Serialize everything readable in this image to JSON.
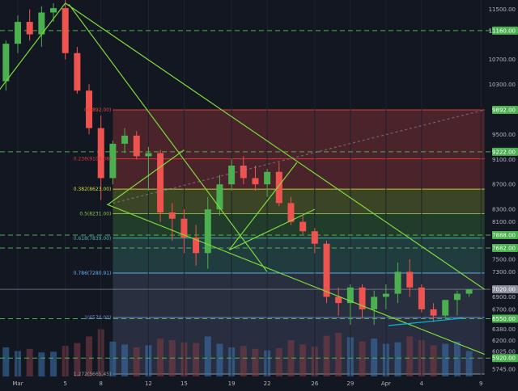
{
  "chart_data": {
    "type": "candlestick",
    "title": "",
    "xlabel": "",
    "ylabel": "",
    "ylim": [
      5600,
      11650
    ],
    "x_ticks": [
      {
        "label": "Mar",
        "day": 1
      },
      {
        "label": "5",
        "day": 5
      },
      {
        "label": "8",
        "day": 8
      },
      {
        "label": "12",
        "day": 12
      },
      {
        "label": "15",
        "day": 15
      },
      {
        "label": "19",
        "day": 19
      },
      {
        "label": "22",
        "day": 22
      },
      {
        "label": "26",
        "day": 26
      },
      {
        "label": "29",
        "day": 29
      },
      {
        "label": "Apr",
        "day": 32
      },
      {
        "label": "4",
        "day": 35
      },
      {
        "label": "9",
        "day": 40
      }
    ],
    "y_ticks": [
      "11500.00",
      "10700.00",
      "10300.00",
      "9900.00",
      "9500.00",
      "9100.00",
      "8700.00",
      "8300.00",
      "8100.00",
      "7500.00",
      "7300.00",
      "6900.00",
      "6700.00",
      "6380.00",
      "6200.00",
      "6025.00",
      "5745.00"
    ],
    "price_labels": [
      {
        "text": "11160.00",
        "value": 11160,
        "color": "#4caf50"
      },
      {
        "text": "9892.00",
        "value": 9892,
        "color": "#4caf50"
      },
      {
        "text": "9222.00",
        "value": 9222,
        "color": "#4caf50"
      },
      {
        "text": "7888.00",
        "value": 7888,
        "color": "#4caf50"
      },
      {
        "text": "7682.00",
        "value": 7682,
        "color": "#4caf50"
      },
      {
        "text": "7020.00",
        "value": 7020,
        "color": "#8a8f9a"
      },
      {
        "text": "6550.00",
        "value": 6550,
        "color": "#4caf50"
      },
      {
        "text": "5920.00",
        "value": 5920,
        "color": "#4caf50"
      }
    ],
    "horizontal_levels": [
      11160,
      9222,
      7888,
      7682,
      6550,
      5920
    ],
    "fib_levels": [
      {
        "label": "0(9892.00)",
        "value": 9892,
        "color": "#f44336"
      },
      {
        "label": "0.236(9108.08)",
        "value": 9108,
        "color": "#e53935"
      },
      {
        "label": "0.382(8623.00)",
        "value": 8623,
        "color": "#cddc39"
      },
      {
        "label": "0.5(8231.00)",
        "value": 8231,
        "color": "#8bc34a"
      },
      {
        "label": "0.618(7839.00)",
        "value": 7839,
        "color": "#4db6ac"
      },
      {
        "label": "0.786(7280.91)",
        "value": 7281,
        "color": "#64b5f6"
      },
      {
        "label": "1(6570.00)",
        "value": 6570,
        "color": "#7e8cd6"
      },
      {
        "label": "1.272(5665.45)",
        "value": 5665,
        "color": "#9e9e9e"
      }
    ],
    "fib_range_days": [
      9,
      40.3
    ],
    "series": [
      {
        "days": [
          0,
          1,
          2,
          3,
          4,
          5,
          6,
          7,
          8,
          9,
          10,
          11,
          12,
          13,
          14,
          15,
          16,
          17,
          18,
          19,
          20,
          21,
          22,
          23,
          24,
          25,
          26,
          27,
          28,
          29,
          30,
          31,
          32,
          33,
          34,
          35,
          36,
          37,
          38,
          39
        ],
        "open": [
          10350,
          10950,
          11300,
          11100,
          11450,
          11520,
          10800,
          10200,
          9600,
          8800,
          9350,
          9480,
          9150,
          9200,
          8250,
          8150,
          7850,
          7600,
          8300,
          8700,
          9000,
          8800,
          8700,
          8900,
          8400,
          8100,
          7950,
          7750,
          6900,
          6800,
          7050,
          6700,
          6900,
          6950,
          7300,
          7050,
          6700,
          6600,
          6850,
          6950
        ],
        "high": [
          11000,
          11400,
          11500,
          11550,
          11600,
          11650,
          10900,
          10300,
          9800,
          9400,
          9600,
          9550,
          9300,
          9250,
          8400,
          8300,
          8050,
          8500,
          8850,
          9100,
          9150,
          9000,
          8950,
          9050,
          8500,
          8200,
          8000,
          7800,
          7050,
          7100,
          7100,
          7000,
          7100,
          7450,
          7500,
          7100,
          6800,
          6850,
          7000,
          7020
        ],
        "low": [
          10200,
          10800,
          11000,
          10900,
          11300,
          10700,
          10150,
          9500,
          8450,
          8700,
          9200,
          9100,
          8600,
          8100,
          7800,
          7600,
          7400,
          7350,
          8200,
          8600,
          8700,
          8600,
          8500,
          8350,
          8050,
          7900,
          7600,
          6800,
          6600,
          6450,
          6550,
          6450,
          6700,
          6800,
          6900,
          6650,
          6500,
          6560,
          6600,
          6900
        ],
        "close": [
          10950,
          11300,
          11100,
          11450,
          11520,
          10800,
          10200,
          9600,
          8800,
          9350,
          9480,
          9150,
          9200,
          8250,
          8150,
          7850,
          7600,
          8300,
          8700,
          9000,
          8800,
          8700,
          8900,
          8400,
          8100,
          7950,
          7750,
          6900,
          6800,
          7050,
          6700,
          6900,
          6950,
          7300,
          7050,
          6700,
          6600,
          6850,
          6950,
          7020
        ],
        "volume": [
          40,
          35,
          38,
          33,
          34,
          42,
          46,
          55,
          65,
          48,
          44,
          40,
          43,
          52,
          50,
          47,
          46,
          55,
          45,
          40,
          42,
          38,
          36,
          39,
          50,
          44,
          41,
          56,
          60,
          54,
          48,
          52,
          45,
          47,
          55,
          50,
          43,
          45,
          48,
          35
        ]
      }
    ]
  }
}
